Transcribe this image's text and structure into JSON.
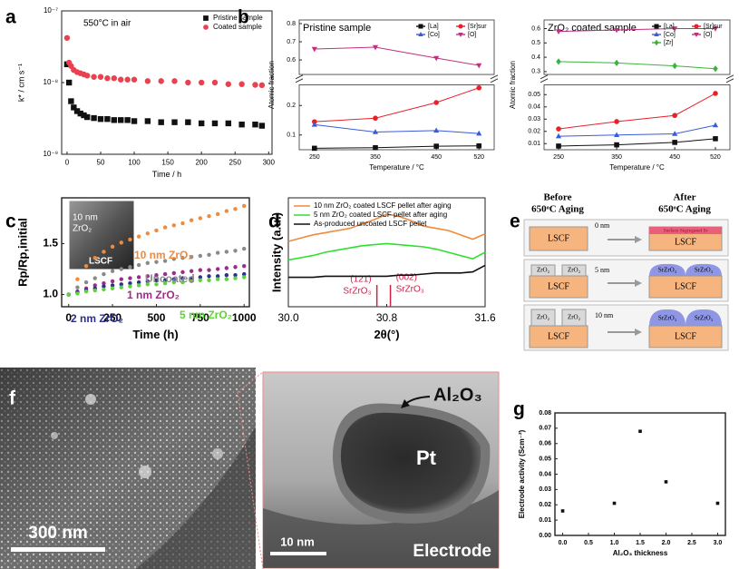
{
  "chart_data": [
    {
      "type": "scatter",
      "panel": "a",
      "annotation": "550°C in air",
      "xlabel": "Time / h",
      "ylabel": "k* / cm s⁻¹",
      "x": [
        0,
        3,
        6,
        10,
        15,
        20,
        25,
        30,
        40,
        50,
        60,
        70,
        80,
        90,
        100,
        120,
        140,
        160,
        180,
        200,
        220,
        240,
        260,
        280,
        290
      ],
      "series": [
        {
          "name": "Pristine sample",
          "color": "#111111",
          "marker": "square",
          "values": [
            1.8e-08,
            1e-08,
            5.5e-09,
            4.5e-09,
            4e-09,
            3.7e-09,
            3.5e-09,
            3.3e-09,
            3.2e-09,
            3.1e-09,
            3.1e-09,
            3e-09,
            3e-09,
            3e-09,
            2.9e-09,
            2.9e-09,
            2.8e-09,
            2.8e-09,
            2.8e-09,
            2.7e-09,
            2.7e-09,
            2.7e-09,
            2.6e-09,
            2.6e-09,
            2.5e-09
          ]
        },
        {
          "name": "Coated sample",
          "color": "#e8414f",
          "marker": "circle",
          "values": [
            4.2e-08,
            1.9e-08,
            1.7e-08,
            1.5e-08,
            1.4e-08,
            1.35e-08,
            1.3e-08,
            1.25e-08,
            1.2e-08,
            1.2e-08,
            1.15e-08,
            1.15e-08,
            1.1e-08,
            1.1e-08,
            1.1e-08,
            1.05e-08,
            1.05e-08,
            1.05e-08,
            1e-08,
            1e-08,
            1e-08,
            9.5e-09,
            9.5e-09,
            9.3e-09,
            9.2e-09
          ]
        }
      ],
      "lines": false,
      "log_y": true,
      "legend": "upper right",
      "xlim": [
        -8,
        305
      ],
      "xticks": [
        0,
        50,
        100,
        150,
        200,
        250,
        300
      ],
      "ylim": [
        1e-09,
        1e-07
      ],
      "yticks": [
        {
          "value": 1e-09,
          "label": "10⁻⁹"
        },
        {
          "value": 1e-08,
          "label": "10⁻⁸"
        },
        {
          "value": 1e-07,
          "label": "10⁻⁷"
        }
      ]
    },
    {
      "type": "line",
      "panel": "b",
      "title": "Pristine sample",
      "xlabel": "Temperature / °C",
      "ylabel": "Atomic fraction",
      "x": [
        250,
        350,
        450,
        520
      ],
      "series": [
        {
          "name": "[La]",
          "color": "#111111",
          "marker": "square",
          "values": [
            0.055,
            0.057,
            0.062,
            0.063
          ]
        },
        {
          "name": "[Sr]sur",
          "color": "#e8202a",
          "marker": "circle",
          "values": [
            0.145,
            0.157,
            0.21,
            0.26
          ]
        },
        {
          "name": "[Co]",
          "color": "#3a5bd9",
          "marker": "triangle-up",
          "values": [
            0.135,
            0.11,
            0.115,
            0.105
          ]
        },
        {
          "name": "[O]",
          "color": "#c0307f",
          "marker": "triangle-down",
          "values": [
            0.66,
            0.67,
            0.61,
            0.57
          ]
        }
      ],
      "lines": true,
      "legend": "upper right",
      "legend_columns": 2,
      "xlim": [
        225,
        545
      ],
      "xticks": [
        250,
        350,
        450,
        520
      ],
      "y_segments": [
        {
          "ylim": [
            0.05,
            0.27
          ],
          "yticks": [
            0.1,
            0.2
          ]
        },
        {
          "ylim": [
            0.52,
            0.82
          ],
          "yticks": [
            0.6,
            0.7,
            0.8
          ]
        }
      ]
    },
    {
      "type": "line",
      "title": "ZrO₂ coated sample",
      "xlabel": "Temperature / °C",
      "ylabel": "Atomic fraction",
      "x": [
        250,
        350,
        450,
        520
      ],
      "series": [
        {
          "name": "[La]",
          "color": "#111111",
          "marker": "square",
          "values": [
            0.008,
            0.009,
            0.011,
            0.014
          ]
        },
        {
          "name": "[Sr]sur",
          "color": "#e8202a",
          "marker": "circle",
          "values": [
            0.022,
            0.028,
            0.033,
            0.051
          ]
        },
        {
          "name": "[Co]",
          "color": "#3a5bd9",
          "marker": "triangle-up",
          "values": [
            0.016,
            0.017,
            0.018,
            0.025
          ]
        },
        {
          "name": "[O]",
          "color": "#c0307f",
          "marker": "triangle-down",
          "values": [
            0.58,
            0.59,
            0.6,
            0.6
          ]
        },
        {
          "name": "[Zr]",
          "color": "#3cb43c",
          "marker": "diamond",
          "values": [
            0.37,
            0.36,
            0.34,
            0.32
          ]
        }
      ],
      "lines": true,
      "legend": "upper right",
      "legend_columns": 2,
      "xlim": [
        225,
        545
      ],
      "xticks": [
        250,
        350,
        450,
        520
      ],
      "y_segments": [
        {
          "ylim": [
            0.005,
            0.058
          ],
          "yticks": [
            0.01,
            0.02,
            0.03,
            0.04,
            0.05
          ]
        },
        {
          "ylim": [
            0.28,
            0.66
          ],
          "yticks": [
            0.3,
            0.4,
            0.5,
            0.6
          ]
        }
      ]
    },
    {
      "type": "line",
      "panel": "c",
      "xlabel": "Time (h)",
      "ylabel": "Rp/Rp,initial",
      "x": [
        0,
        50,
        100,
        150,
        200,
        250,
        300,
        350,
        400,
        450,
        500,
        550,
        600,
        650,
        700,
        750,
        800,
        850,
        900,
        950,
        1000
      ],
      "series": [
        {
          "name": "10 nm ZrO₂",
          "color": "#f08a3c",
          "marker": "dot",
          "values": [
            1.0,
            1.15,
            1.28,
            1.36,
            1.42,
            1.47,
            1.51,
            1.54,
            1.57,
            1.6,
            1.63,
            1.66,
            1.68,
            1.7,
            1.73,
            1.75,
            1.77,
            1.79,
            1.82,
            1.84,
            1.87
          ]
        },
        {
          "name": "Uncoated",
          "color": "#8a8a8a",
          "marker": "dot",
          "values": [
            1.0,
            1.07,
            1.12,
            1.16,
            1.2,
            1.23,
            1.25,
            1.27,
            1.29,
            1.31,
            1.32,
            1.33,
            1.35,
            1.36,
            1.37,
            1.38,
            1.39,
            1.41,
            1.42,
            1.43,
            1.45
          ]
        },
        {
          "name": "1 nm ZrO₂",
          "color": "#9b2d8a",
          "marker": "dot",
          "values": [
            1.0,
            1.03,
            1.06,
            1.09,
            1.11,
            1.13,
            1.15,
            1.16,
            1.17,
            1.18,
            1.19,
            1.2,
            1.21,
            1.22,
            1.23,
            1.24,
            1.24,
            1.25,
            1.26,
            1.27,
            1.28
          ]
        },
        {
          "name": "2 nm ZrO₂",
          "color": "#2b2f8f",
          "marker": "dot",
          "values": [
            1.0,
            1.02,
            1.04,
            1.06,
            1.08,
            1.09,
            1.1,
            1.11,
            1.12,
            1.13,
            1.14,
            1.14,
            1.15,
            1.16,
            1.16,
            1.17,
            1.18,
            1.18,
            1.19,
            1.19,
            1.2
          ]
        },
        {
          "name": "5 nm ZrO₂",
          "color": "#5fd33a",
          "marker": "dot",
          "values": [
            1.0,
            1.01,
            1.03,
            1.04,
            1.05,
            1.06,
            1.07,
            1.08,
            1.09,
            1.1,
            1.1,
            1.11,
            1.12,
            1.12,
            1.13,
            1.14,
            1.14,
            1.15,
            1.15,
            1.16,
            1.17
          ]
        }
      ],
      "lines": false,
      "legend": "inline",
      "inset_labels": [
        "10 nm",
        "ZrO₂",
        "LSCF"
      ],
      "xlim": [
        -40,
        1030
      ],
      "xticks": [
        0,
        250,
        500,
        750,
        1000
      ],
      "ylim": [
        0.88,
        1.95
      ],
      "yticks": [
        {
          "value": 1,
          "label": "1.0"
        },
        1.5
      ]
    },
    {
      "type": "line",
      "panel": "d",
      "xlabel": "2θ(°)",
      "ylabel": "Intensity (a.u.)",
      "x": [
        30,
        30.1,
        30.2,
        30.3,
        30.4,
        30.5,
        30.6,
        30.7,
        30.8,
        30.9,
        31,
        31.1,
        31.2,
        31.3,
        31.4,
        31.5,
        31.6
      ],
      "series": [
        {
          "name": "10 nm ZrO₂ coated LSCF pellet after aging",
          "color": "#f08a3c",
          "marker": "none",
          "values": [
            0.6,
            0.63,
            0.66,
            0.68,
            0.7,
            0.72,
            0.76,
            0.8,
            0.85,
            0.83,
            0.79,
            0.74,
            0.72,
            0.7,
            0.66,
            0.62,
            0.67
          ]
        },
        {
          "name": "5 nm ZrO₂ coated LSCF pellet after aging",
          "color": "#2fe02f",
          "marker": "none",
          "values": [
            0.43,
            0.45,
            0.47,
            0.5,
            0.52,
            0.54,
            0.56,
            0.57,
            0.58,
            0.57,
            0.56,
            0.55,
            0.53,
            0.5,
            0.47,
            0.44,
            0.5
          ]
        },
        {
          "name": "As-produced uncoated LSCF pellet",
          "color": "#111111",
          "marker": "none",
          "values": [
            0.27,
            0.27,
            0.27,
            0.28,
            0.28,
            0.28,
            0.28,
            0.28,
            0.28,
            0.29,
            0.29,
            0.3,
            0.31,
            0.31,
            0.31,
            0.32,
            0.38
          ]
        }
      ],
      "lines": true,
      "legend": "upper left",
      "reference_peaks": [
        {
          "x": 30.72,
          "label": "(121)",
          "phase": "SrZrO₃"
        },
        {
          "x": 30.83,
          "label": "(002)",
          "phase": "SrZrO₃"
        }
      ],
      "reference_color": "#d0204a",
      "xlim": [
        30,
        31.6
      ],
      "xticks": [
        {
          "value": 30,
          "label": "30.0"
        },
        30.8,
        {
          "value": 31.6,
          "label": "31.6"
        }
      ],
      "ylim": [
        0,
        1
      ]
    },
    {
      "type": "scatter",
      "panel": "g",
      "xlabel": "Al₂O₃ thickness",
      "ylabel": "Electrode activity (Scm⁻²)",
      "x": [
        0,
        1,
        1.5,
        2,
        3
      ],
      "values": [
        0.016,
        0.021,
        0.068,
        0.035,
        0.021
      ],
      "color": "#111111",
      "marker": "square",
      "lines": false,
      "xlim": [
        -0.15,
        3.15
      ],
      "xticks": [
        {
          "value": 0,
          "label": "0.0"
        },
        0.5,
        {
          "value": 1,
          "label": "1.0"
        },
        1.5,
        {
          "value": 2,
          "label": "2.0"
        },
        2.5,
        {
          "value": 3,
          "label": "3.0"
        }
      ],
      "ylim": [
        0,
        0.08
      ],
      "yticks": [
        {
          "value": 0,
          "label": "0.00"
        },
        0.01,
        0.02,
        0.03,
        0.04,
        0.05,
        0.06,
        0.07,
        {
          "value": 0.08,
          "label": "0.08"
        }
      ]
    }
  ],
  "diagram_e": {
    "panel": "e",
    "before": [
      "Before",
      "650ᵒC Aging"
    ],
    "after": [
      "After",
      "650ᵒC Aging"
    ],
    "rows": [
      {
        "thickness": "0 nm",
        "substrate_before": "LSCF",
        "substrate_after": "LSCF",
        "segregation": "Surface Segregated Sr"
      },
      {
        "thickness": "5 nm",
        "coating": [
          "ZrO₂",
          "ZrO₂"
        ],
        "substrate_before": "LSCF",
        "product": [
          "SrZrO₃",
          "SrZrO₃"
        ],
        "substrate_after": "LSCF"
      },
      {
        "thickness": "10 nm",
        "coating": [
          "ZrO₂",
          "ZrO₂"
        ],
        "substrate_before": "LSCF",
        "product": [
          "SrZrO₃",
          "SrZrO₃"
        ],
        "substrate_after": "LSCF"
      }
    ]
  },
  "images_f": {
    "panel": "f",
    "scale_bar_left": "300 nm",
    "coating_label": "Al₂O₃",
    "particle_label": "Pt",
    "scale_bar_right": "10 nm",
    "substrate_label": "Electrode"
  }
}
